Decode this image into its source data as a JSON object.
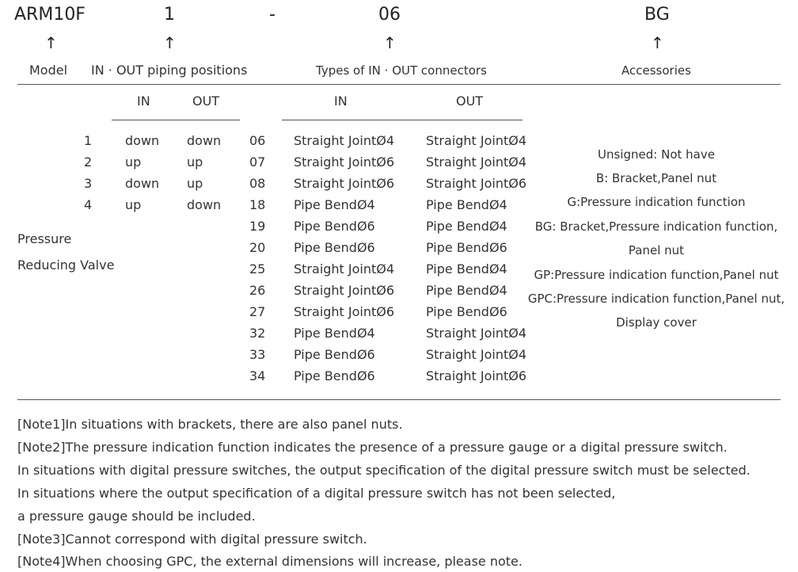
{
  "codes": {
    "model": "ARM10F",
    "positions": "1",
    "dash": "-",
    "connectors": "06",
    "accessories": "BG"
  },
  "arrow": "↑",
  "headers": {
    "model": "Model",
    "positions": "IN · OUT piping positions",
    "connectors": "Types of IN · OUT connectors",
    "accessories": "Accessories"
  },
  "positions_sub": {
    "in": "IN",
    "out": "OUT"
  },
  "connectors_sub": {
    "in": "IN",
    "out": "OUT"
  },
  "model_name": {
    "line1": "Pressure",
    "line2": "Reducing Valve"
  },
  "positions_rows": [
    {
      "code": "1",
      "in": "down",
      "out": "down"
    },
    {
      "code": "2",
      "in": "up",
      "out": "up"
    },
    {
      "code": "3",
      "in": "down",
      "out": "up"
    },
    {
      "code": "4",
      "in": "up",
      "out": "down"
    }
  ],
  "connector_rows": [
    {
      "code": "06",
      "in": "Straight JointØ4",
      "out": "Straight JointØ4"
    },
    {
      "code": "07",
      "in": "Straight JointØ6",
      "out": "Straight JointØ4"
    },
    {
      "code": "08",
      "in": "Straight JointØ6",
      "out": "Straight JointØ6"
    },
    {
      "code": "18",
      "in": "Pipe BendØ4",
      "out": "Pipe BendØ4"
    },
    {
      "code": "19",
      "in": "Pipe BendØ6",
      "out": "Pipe BendØ4"
    },
    {
      "code": "20",
      "in": "Pipe BendØ6",
      "out": "Pipe BendØ6"
    },
    {
      "code": "25",
      "in": "Straight JointØ4",
      "out": "Pipe BendØ4"
    },
    {
      "code": "26",
      "in": "Straight JointØ6",
      "out": "Pipe BendØ4"
    },
    {
      "code": "27",
      "in": "Straight JointØ6",
      "out": "Pipe BendØ6"
    },
    {
      "code": "32",
      "in": "Pipe BendØ4",
      "out": "Straight JointØ4"
    },
    {
      "code": "33",
      "in": "Pipe BendØ6",
      "out": "Straight JointØ4"
    },
    {
      "code": "34",
      "in": "Pipe BendØ6",
      "out": "Straight JointØ6"
    }
  ],
  "accessories_lines": [
    "Unsigned: Not have",
    "B: Bracket,Panel nut",
    "G:Pressure indication function",
    "BG: Bracket,Pressure indication function,",
    "Panel nut",
    "GP:Pressure indication function,Panel nut",
    "GPC:Pressure indication function,Panel nut,",
    "Display cover"
  ],
  "notes": [
    "[Note1]In situations with brackets, there are also panel nuts.",
    "[Note2]The pressure indication function indicates the presence of a pressure gauge or a digital pressure switch.",
    "In situations with digital pressure switches, the output specification of the digital pressure switch must be selected.",
    "In situations where the output specification of a digital pressure switch has not been selected,",
    "a pressure gauge should be included.",
    "[Note3]Cannot correspond with digital pressure switch.",
    "[Note4]When choosing GPC, the external dimensions will increase, please note."
  ]
}
